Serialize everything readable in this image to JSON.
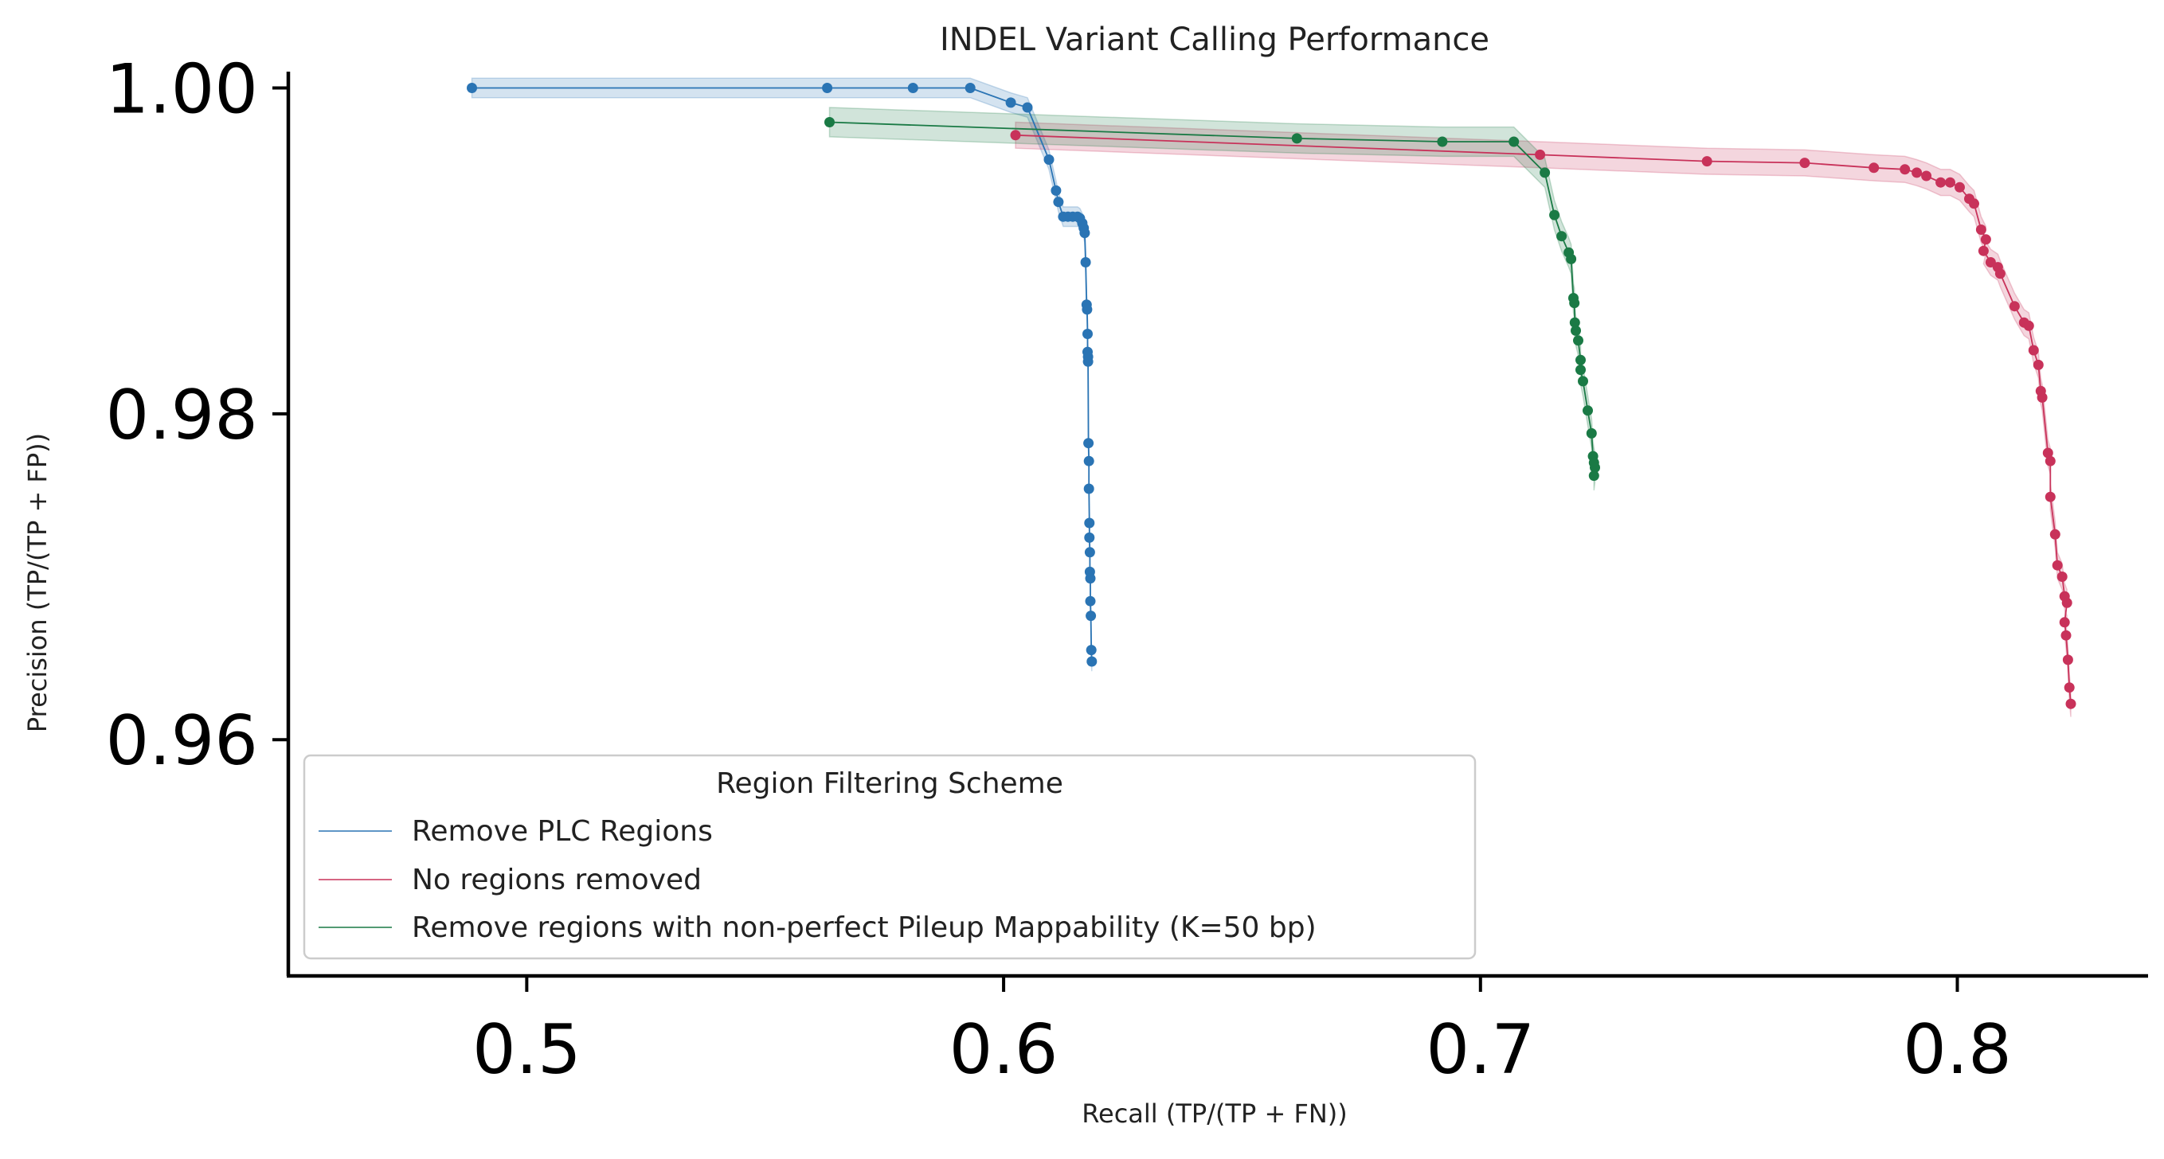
{
  "chart_data": {
    "type": "line",
    "title": "INDEL Variant Calling Performance",
    "xlabel": "Recall (TP/(TP + FN))",
    "ylabel": "Precision (TP/(TP + FP))",
    "xlim": [
      0.45,
      0.84
    ],
    "ylim": [
      0.9455,
      1.001
    ],
    "xticks": [
      0.5,
      0.6,
      0.7,
      0.8
    ],
    "xtick_labels": [
      "0.5",
      "0.6",
      "0.7",
      "0.8"
    ],
    "yticks": [
      0.96,
      0.98,
      1.0
    ],
    "ytick_labels": [
      "0.96",
      "0.98",
      "1.00"
    ],
    "grid": false,
    "legend": {
      "title": "Region Filtering Scheme",
      "placement": "lower-left"
    },
    "series": [
      {
        "name": "Remove PLC Regions",
        "color": "#2a74b4",
        "band_width": 0.0006,
        "points": [
          [
            0.4885,
            1.0
          ],
          [
            0.563,
            1.0
          ],
          [
            0.581,
            1.0
          ],
          [
            0.593,
            1.0
          ],
          [
            0.6015,
            0.9991
          ],
          [
            0.605,
            0.9988
          ],
          [
            0.6095,
            0.9956
          ],
          [
            0.611,
            0.9937
          ],
          [
            0.6115,
            0.993
          ],
          [
            0.6125,
            0.9921
          ],
          [
            0.6135,
            0.9921
          ],
          [
            0.6145,
            0.9921
          ],
          [
            0.6155,
            0.9921
          ],
          [
            0.616,
            0.992
          ],
          [
            0.6165,
            0.9917
          ],
          [
            0.6168,
            0.9914
          ],
          [
            0.617,
            0.9911
          ],
          [
            0.6172,
            0.9893
          ],
          [
            0.6174,
            0.9867
          ],
          [
            0.6175,
            0.9864
          ],
          [
            0.6176,
            0.9849
          ],
          [
            0.6176,
            0.9838
          ],
          [
            0.6177,
            0.9835
          ],
          [
            0.6177,
            0.9832
          ],
          [
            0.6178,
            0.9782
          ],
          [
            0.6179,
            0.9771
          ],
          [
            0.6179,
            0.9754
          ],
          [
            0.618,
            0.9733
          ],
          [
            0.618,
            0.9724
          ],
          [
            0.6181,
            0.9715
          ],
          [
            0.6181,
            0.9703
          ],
          [
            0.6182,
            0.9699
          ],
          [
            0.6182,
            0.9685
          ],
          [
            0.6183,
            0.9676
          ],
          [
            0.6184,
            0.9655
          ],
          [
            0.6185,
            0.9648
          ]
        ]
      },
      {
        "name": "No regions removed",
        "color": "#c8325a",
        "band_width": 0.0008,
        "points": [
          [
            0.6025,
            0.9971
          ],
          [
            0.7125,
            0.9959
          ],
          [
            0.7475,
            0.9955
          ],
          [
            0.768,
            0.9954
          ],
          [
            0.7825,
            0.9951
          ],
          [
            0.789,
            0.995
          ],
          [
            0.7915,
            0.9948
          ],
          [
            0.7935,
            0.9946
          ],
          [
            0.7965,
            0.9942
          ],
          [
            0.7985,
            0.9942
          ],
          [
            0.8005,
            0.9939
          ],
          [
            0.8025,
            0.9932
          ],
          [
            0.8035,
            0.9929
          ],
          [
            0.805,
            0.9913
          ],
          [
            0.806,
            0.9907
          ],
          [
            0.8055,
            0.99
          ],
          [
            0.807,
            0.9893
          ],
          [
            0.8085,
            0.989
          ],
          [
            0.809,
            0.9886
          ],
          [
            0.812,
            0.9866
          ],
          [
            0.814,
            0.9856
          ],
          [
            0.815,
            0.9854
          ],
          [
            0.816,
            0.9839
          ],
          [
            0.817,
            0.983
          ],
          [
            0.8175,
            0.9814
          ],
          [
            0.8178,
            0.981
          ],
          [
            0.819,
            0.9776
          ],
          [
            0.8195,
            0.9771
          ],
          [
            0.8195,
            0.9749
          ],
          [
            0.8205,
            0.9726
          ],
          [
            0.821,
            0.9707
          ],
          [
            0.822,
            0.97
          ],
          [
            0.8225,
            0.9688
          ],
          [
            0.823,
            0.9684
          ],
          [
            0.8225,
            0.9672
          ],
          [
            0.8228,
            0.9664
          ],
          [
            0.8232,
            0.9649
          ],
          [
            0.8235,
            0.9632
          ],
          [
            0.8238,
            0.9622
          ]
        ]
      },
      {
        "name": "Remove regions with non-perfect Pileup Mappability (K=50 bp)",
        "color": "#1a7a45",
        "band_width": 0.0009,
        "points": [
          [
            0.5635,
            0.9979
          ],
          [
            0.6615,
            0.9969
          ],
          [
            0.692,
            0.9967
          ],
          [
            0.707,
            0.9967
          ],
          [
            0.7135,
            0.9948
          ],
          [
            0.7155,
            0.9922
          ],
          [
            0.717,
            0.9909
          ],
          [
            0.7185,
            0.9899
          ],
          [
            0.719,
            0.9895
          ],
          [
            0.7195,
            0.9871
          ],
          [
            0.7197,
            0.9868
          ],
          [
            0.7198,
            0.9856
          ],
          [
            0.72,
            0.9851
          ],
          [
            0.7205,
            0.9845
          ],
          [
            0.721,
            0.9833
          ],
          [
            0.721,
            0.9827
          ],
          [
            0.7215,
            0.982
          ],
          [
            0.7225,
            0.9802
          ],
          [
            0.7233,
            0.9788
          ],
          [
            0.7236,
            0.9774
          ],
          [
            0.7238,
            0.977
          ],
          [
            0.724,
            0.9767
          ],
          [
            0.7238,
            0.9762
          ]
        ]
      }
    ]
  }
}
